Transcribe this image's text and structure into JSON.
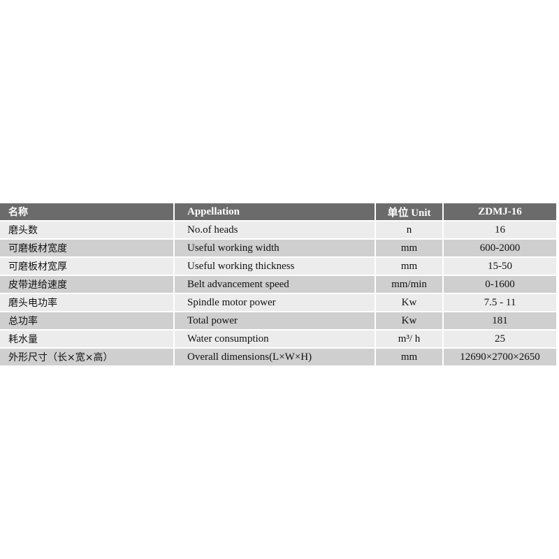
{
  "colors": {
    "header": "#6b6b6b",
    "row_light": "#ececec",
    "row_dark": "#cfcfcf"
  },
  "header": {
    "name": "名称",
    "appellation": "Appellation",
    "unit": "单位  Unit",
    "model": "ZDMJ-16"
  },
  "rows": [
    {
      "name": "磨头数",
      "appellation": "No.of heads",
      "unit": "n",
      "value": "16"
    },
    {
      "name": "可磨板材宽度",
      "appellation": "Useful working width",
      "unit": "mm",
      "value": "600-2000"
    },
    {
      "name": "可磨板材宽厚",
      "appellation": "Useful working thickness",
      "unit": "mm",
      "value": "15-50"
    },
    {
      "name": "皮带进给速度",
      "appellation": "Belt advancement speed",
      "unit": "mm/min",
      "value": "0-1600"
    },
    {
      "name": "磨头电功率",
      "appellation": "Spindle motor power",
      "unit": "Kw",
      "value": "7.5 - 11"
    },
    {
      "name": "总功率",
      "appellation": "Total power",
      "unit": "Kw",
      "value": "181"
    },
    {
      "name": "耗水量",
      "appellation": "Water consumption",
      "unit": "m³/ h",
      "value": "25"
    },
    {
      "name": "外形尺寸（长×宽×高）",
      "appellation": "Overall dimensions(L×W×H)",
      "unit": "mm",
      "value": "12690×2700×2650"
    }
  ]
}
